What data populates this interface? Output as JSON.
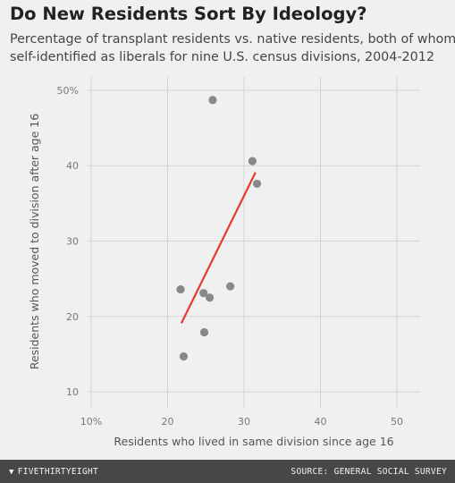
{
  "header": {
    "title": "Do New Residents Sort By Ideology?",
    "subtitle_line1": "Percentage of transplant residents vs. native residents, both of whom",
    "subtitle_line2": "self-identified as liberals for nine U.S. census divisions, 2004-2012"
  },
  "chart_data": {
    "type": "scatter",
    "xlabel": "Residents who lived in same division since age 16",
    "ylabel": "Residents who moved to division after age 16",
    "xlim": [
      8,
      53
    ],
    "ylim": [
      8,
      52
    ],
    "x_ticks": [
      10,
      20,
      30,
      40,
      50
    ],
    "x_tick_labels": [
      "10%",
      "20",
      "30",
      "40",
      "50"
    ],
    "y_ticks": [
      10,
      20,
      30,
      40,
      50
    ],
    "y_tick_labels": [
      "10",
      "20",
      "30",
      "40",
      "50%"
    ],
    "grid": true,
    "points": [
      {
        "x": 25.9,
        "y": 48.7
      },
      {
        "x": 31.1,
        "y": 40.6
      },
      {
        "x": 31.7,
        "y": 37.6
      },
      {
        "x": 28.2,
        "y": 24.0
      },
      {
        "x": 21.7,
        "y": 23.6
      },
      {
        "x": 24.7,
        "y": 23.1
      },
      {
        "x": 25.5,
        "y": 22.5
      },
      {
        "x": 24.8,
        "y": 17.9
      },
      {
        "x": 22.1,
        "y": 14.7
      }
    ],
    "trendline": {
      "x1": 21.8,
      "y1": 19.1,
      "x2": 31.5,
      "y2": 39.1
    },
    "point_color": "#888888",
    "trend_color": "#e8392f"
  },
  "footer": {
    "brand": "FIVETHIRTYEIGHT",
    "source": "SOURCE: GENERAL SOCIAL SURVEY"
  }
}
